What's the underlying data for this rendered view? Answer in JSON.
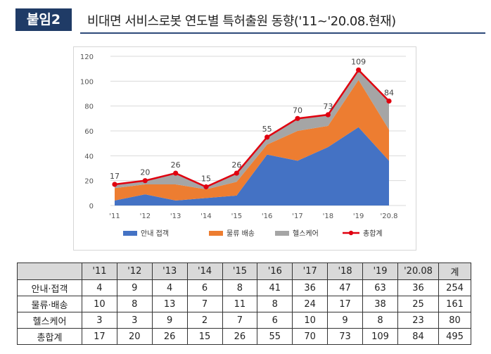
{
  "header": {
    "badge": "붙임2",
    "title": "비대면 서비스로봇 연도별 특허출원 동향('11~'20.08.현재)"
  },
  "chart_data": {
    "type": "area",
    "stacked": true,
    "categories": [
      "'11",
      "'12",
      "'13",
      "'14",
      "'15",
      "'16",
      "'17",
      "'18",
      "'19",
      "'20.8"
    ],
    "series": [
      {
        "name": "안내 접객",
        "color": "#4472c4",
        "values": [
          4,
          9,
          4,
          6,
          8,
          41,
          36,
          47,
          63,
          36
        ]
      },
      {
        "name": "물류 배송",
        "color": "#ed7d31",
        "values": [
          10,
          8,
          13,
          7,
          11,
          8,
          24,
          17,
          38,
          25
        ]
      },
      {
        "name": "헬스케어",
        "color": "#a5a5a5",
        "values": [
          3,
          3,
          9,
          2,
          7,
          6,
          10,
          9,
          8,
          23
        ]
      }
    ],
    "total_series": {
      "name": "총합계",
      "color": "#e0000f",
      "values": [
        17,
        20,
        26,
        15,
        26,
        55,
        70,
        73,
        109,
        84
      ]
    },
    "data_labels": [
      "17",
      "20",
      "26",
      "15",
      "26",
      "55",
      "70",
      "73",
      "109",
      "84"
    ],
    "y_ticks": [
      "0",
      "20",
      "40",
      "60",
      "80",
      "100",
      "120"
    ],
    "ylim": [
      0,
      120
    ],
    "grid": true,
    "legend_position": "bottom"
  },
  "table": {
    "headers": [
      "",
      "'11",
      "'12",
      "'13",
      "'14",
      "'15",
      "'16",
      "'17",
      "'18",
      "'19",
      "'20.08",
      "계"
    ],
    "rows": [
      [
        "안내·접객",
        "4",
        "9",
        "4",
        "6",
        "8",
        "41",
        "36",
        "47",
        "63",
        "36",
        "254"
      ],
      [
        "물류·배송",
        "10",
        "8",
        "13",
        "7",
        "11",
        "8",
        "24",
        "17",
        "38",
        "25",
        "161"
      ],
      [
        "헬스케어",
        "3",
        "3",
        "9",
        "2",
        "7",
        "6",
        "10",
        "9",
        "8",
        "23",
        "80"
      ],
      [
        "총합계",
        "17",
        "20",
        "26",
        "15",
        "26",
        "55",
        "70",
        "73",
        "109",
        "84",
        "495"
      ]
    ]
  }
}
